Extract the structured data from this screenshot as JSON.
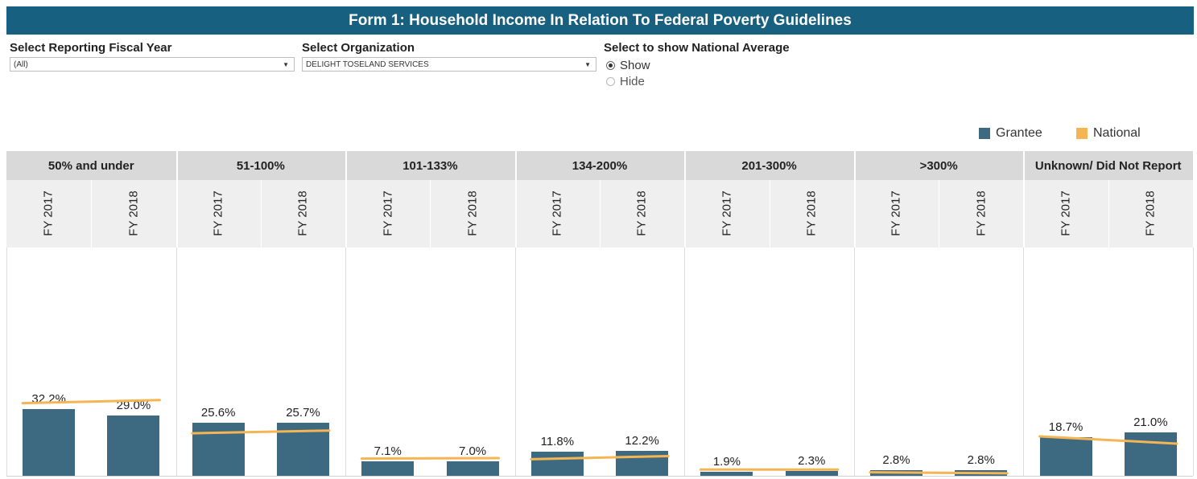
{
  "title": "Form 1: Household Income In Relation To Federal Poverty Guidelines",
  "filters": {
    "fiscal_year": {
      "label": "Select Reporting Fiscal Year",
      "value": "(All)"
    },
    "organization": {
      "label": "Select Organization",
      "value": "DELIGHT TOSELAND SERVICES"
    },
    "national": {
      "label": "Select to show National Average",
      "options": [
        "Show",
        "Hide"
      ],
      "selected": "Show"
    }
  },
  "legend": {
    "grantee": "Grantee",
    "national": "National"
  },
  "colors": {
    "grantee": "#3d6981",
    "national": "#f5b553",
    "title_bar": "#17607f"
  },
  "chart_data": {
    "type": "bar",
    "title": "Form 1: Household Income In Relation To Federal Poverty Guidelines",
    "categories": [
      "50% and under",
      "51-100%",
      "101-133%",
      "134-200%",
      "201-300%",
      ">300%",
      "Unknown/ Did Not Report"
    ],
    "x": [
      "FY 2017",
      "FY 2018"
    ],
    "series": [
      {
        "name": "Grantee",
        "values": [
          [
            32.2,
            29.0
          ],
          [
            25.6,
            25.7
          ],
          [
            7.1,
            7.0
          ],
          [
            11.8,
            12.2
          ],
          [
            1.9,
            2.3
          ],
          [
            2.8,
            2.8
          ],
          [
            18.7,
            21.0
          ]
        ],
        "labels": [
          [
            "32.2%",
            "29.0%"
          ],
          [
            "25.6%",
            "25.7%"
          ],
          [
            "7.1%",
            "7.0%"
          ],
          [
            "11.8%",
            "12.2%"
          ],
          [
            "1.9%",
            "2.3%"
          ],
          [
            "2.8%",
            "2.8%"
          ],
          [
            "18.7%",
            "21.0%"
          ]
        ]
      },
      {
        "name": "National",
        "values": [
          [
            35.0,
            36.5
          ],
          [
            20.5,
            21.8
          ],
          [
            8.3,
            8.5
          ],
          [
            8.0,
            9.5
          ],
          [
            3.0,
            3.0
          ],
          [
            1.7,
            1.2
          ],
          [
            19.0,
            15.5
          ]
        ]
      }
    ],
    "ylim": [
      0,
      110
    ],
    "legend_position": "top-right"
  }
}
